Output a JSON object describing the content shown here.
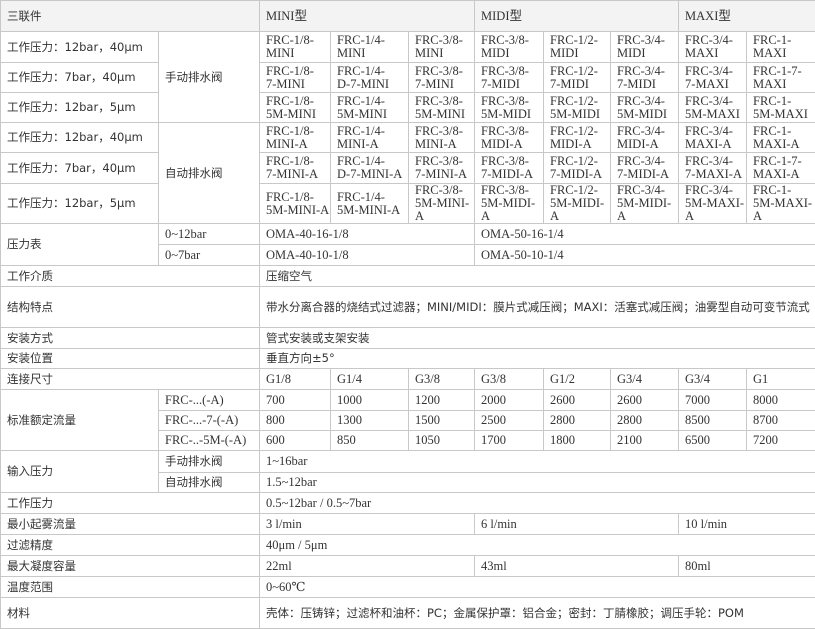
{
  "table": {
    "rows": [
      [
        "三联件",
        "MINI型",
        "MIDI型",
        "MAXI型"
      ],
      [
        "工作压力：12bar，40μm",
        "手动排水阀",
        "FRC-1/8-\nMINI",
        "FRC-1/4-\nMINI",
        "FRC-3/8-\nMINI",
        "FRC-3/8-\nMIDI",
        "FRC-1/2-\nMIDI",
        "FRC-3/4-\nMIDI",
        "FRC-3/4-\nMAXI",
        "FRC-1-\nMAXI"
      ],
      [
        "工作压力：7bar，40μm",
        "FRC-1/8-\n7-MINI",
        "FRC-1/4-\nD-7-MINI",
        "FRC-3/8-\n7-MINI",
        "FRC-3/8-\n7-MIDI",
        "FRC-1/2-\n7-MIDI",
        "FRC-3/4-\n7-MIDI",
        "FRC-3/4-\n7-MAXI",
        "FRC-1-7-\nMAXI"
      ],
      [
        "工作压力：12bar，5μm",
        "FRC-1/8-\n5M-MINI",
        "FRC-1/4-\n5M-MINI",
        "FRC-3/8-\n5M-MINI",
        "FRC-3/8-\n5M-MIDI",
        "FRC-1/2-\n5M-MIDI",
        "FRC-3/4-\n5M-MIDI",
        "FRC-3/4-\n5M-MAXI",
        "FRC-1-\n5M-MAXI"
      ],
      [
        "工作压力：12bar，40μm",
        "自动排水阀",
        "FRC-1/8-\nMINI-A",
        "FRC-1/4-\nMINI-A",
        "FRC-3/8-\nMINI-A",
        "FRC-3/8-\nMIDI-A",
        "FRC-1/2-\nMIDI-A",
        "FRC-3/4-\nMIDI-A",
        "FRC-3/4-\nMAXI-A",
        "FRC-1-\nMAXI-A"
      ],
      [
        "工作压力：7bar，40μm",
        "FRC-1/8-\n7-MINI-A",
        "FRC-1/4-\nD-7-MINI-A",
        "FRC-3/8-\n7-MINI-A",
        "FRC-3/8-\n7-MIDI-A",
        "FRC-1/2-\n7-MIDI-A",
        "FRC-3/4-\n7-MIDI-A",
        "FRC-3/4-\n7-MAXI-A",
        "FRC-1-7-\nMAXI-A"
      ],
      [
        "工作压力：12bar，5μm",
        "FRC-1/8-\n5M-MINI-A",
        "FRC-1/4-\n5M-MINI-A",
        "FRC-3/8-\n5M-MINI-A",
        "FRC-3/8-\n5M-MIDI-A",
        "FRC-1/2-\n5M-MIDI-A",
        "FRC-3/4-\n5M-MIDI-A",
        "FRC-3/4-\n5M-MAXI-A",
        "FRC-1-\n5M-MAXI-A"
      ],
      [
        "压力表",
        "0~12bar",
        "OMA-40-16-1/8",
        "OMA-50-16-1/4"
      ],
      [
        "0~7bar",
        "OMA-40-10-1/8",
        "OMA-50-10-1/4"
      ],
      [
        "工作介质",
        "压缩空气"
      ],
      [
        "结构特点",
        "带水分离合器的烧结式过滤器；MINI/MIDI：膜片式减压阀；MAXI：活塞式减压阀；油雾型自动可变节流式"
      ],
      [
        "安装方式",
        "管式安装或支架安装"
      ],
      [
        "安装位置",
        "垂直方向±5°"
      ],
      [
        "连接尺寸",
        "G1/8",
        "G1/4",
        "G3/8",
        "G3/8",
        "G1/2",
        "G3/4",
        "G3/4",
        "G1"
      ],
      [
        "标准额定流量",
        "FRC-...(-A)",
        "700",
        "1000",
        "1200",
        "2000",
        "2600",
        "2600",
        "7000",
        "8000"
      ],
      [
        "FRC-...-7-(-A)",
        "800",
        "1300",
        "1500",
        "2500",
        "2800",
        "2800",
        "8500",
        "8700"
      ],
      [
        "FRC-..-5M-(-A)",
        "600",
        "850",
        "1050",
        "1700",
        "1800",
        "2100",
        "6500",
        "7200"
      ],
      [
        "输入压力",
        "手动排水阀",
        "1~16bar"
      ],
      [
        "自动排水阀",
        "1.5~12bar"
      ],
      [
        "工作压力",
        "0.5~12bar / 0.5~7bar"
      ],
      [
        "最小起雾流量",
        "3 l/min",
        "6 l/min",
        "10 l/min"
      ],
      [
        "过滤精度",
        "40μm / 5μm"
      ],
      [
        "最大凝度容量",
        "22ml",
        "43ml",
        "80ml"
      ],
      [
        "温度范围",
        "0~60℃"
      ],
      [
        "材料",
        "壳体：压铸锌；过滤杯和油杯：PC；金属保护罩：铝合金；密封：丁腈橡胶；调压手轮：POM"
      ]
    ]
  }
}
